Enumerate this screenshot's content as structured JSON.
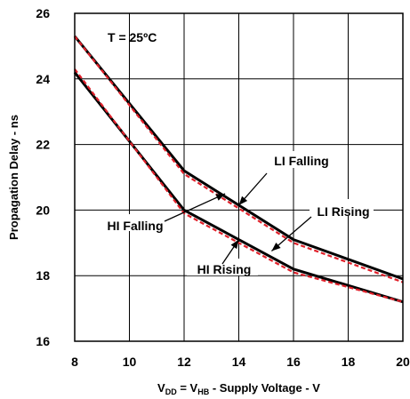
{
  "chart_data": {
    "type": "line",
    "title": "",
    "condition": "T = 25ºC",
    "ylabel": "Propagation Delay - ns",
    "xlabel": {
      "parts": [
        "V",
        "DD",
        " = V",
        "HB",
        " - Supply Voltage - V"
      ]
    },
    "xlim": [
      8,
      20
    ],
    "ylim": [
      16,
      26
    ],
    "xticks": [
      8,
      10,
      12,
      14,
      16,
      18,
      20
    ],
    "yticks": [
      16,
      18,
      20,
      22,
      24,
      26
    ],
    "grid": true,
    "series": [
      {
        "name": "LI Falling",
        "x": [
          8,
          12,
          16,
          20
        ],
        "y": [
          25.3,
          21.2,
          19.1,
          17.9
        ],
        "color": "#000000"
      },
      {
        "name": "LI Rising",
        "x": [
          8,
          12,
          16,
          20
        ],
        "y": [
          25.3,
          21.1,
          19.0,
          17.8
        ],
        "color": "#e0202a",
        "dash": true
      },
      {
        "name": "HI Falling",
        "x": [
          8,
          12,
          16,
          20
        ],
        "y": [
          24.2,
          20.0,
          18.2,
          17.2
        ],
        "color": "#000000"
      },
      {
        "name": "HI Rising",
        "x": [
          8,
          12,
          16,
          20
        ],
        "y": [
          24.3,
          19.9,
          18.1,
          17.2
        ],
        "color": "#e0202a",
        "dash": true
      }
    ],
    "annotations": [
      {
        "text": "LI Falling",
        "arrow_to": [
          14,
          20.15
        ]
      },
      {
        "text": "LI Rising",
        "arrow_to": [
          15.2,
          18.75
        ]
      },
      {
        "text": "HI Falling",
        "arrow_to": [
          13.5,
          20.5
        ]
      },
      {
        "text": "HI Rising",
        "arrow_to": [
          14,
          19.1
        ]
      }
    ]
  }
}
